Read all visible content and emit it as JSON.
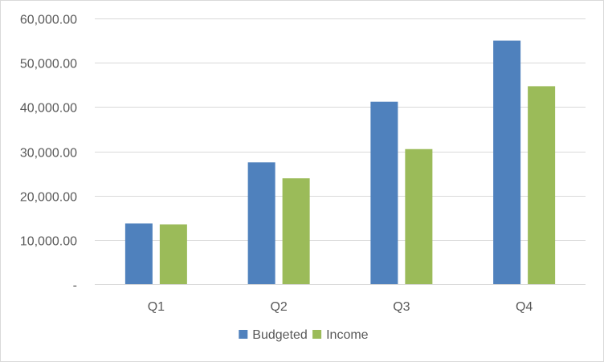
{
  "chart_data": {
    "type": "bar",
    "title": "",
    "xlabel": "",
    "ylabel": "",
    "categories": [
      "Q1",
      "Q2",
      "Q3",
      "Q4"
    ],
    "series": [
      {
        "name": "Budgeted",
        "color": "#4f81bd",
        "values": [
          13700,
          27500,
          41200,
          55000
        ]
      },
      {
        "name": "Income",
        "color": "#9bbb59",
        "values": [
          13500,
          23900,
          30500,
          44700
        ]
      }
    ],
    "ylim": [
      0,
      60000
    ],
    "y_ticks": [
      {
        "value": 0,
        "label": "-"
      },
      {
        "value": 10000,
        "label": "10,000.00"
      },
      {
        "value": 20000,
        "label": "20,000.00"
      },
      {
        "value": 30000,
        "label": "30,000.00"
      },
      {
        "value": 40000,
        "label": "40,000.00"
      },
      {
        "value": 50000,
        "label": "50,000.00"
      },
      {
        "value": 60000,
        "label": "60,000.00"
      }
    ],
    "grid": true,
    "legend_position": "bottom"
  }
}
